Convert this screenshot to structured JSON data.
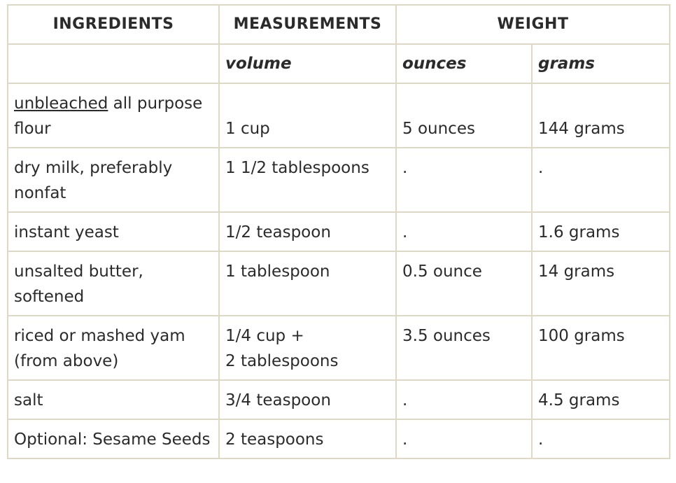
{
  "headers": {
    "ingredients": "INGREDIENTS",
    "measurements": "MEASUREMENTS",
    "weight": "WEIGHT"
  },
  "units": {
    "volume": "volume",
    "ounces": "ounces",
    "grams": "grams"
  },
  "rows": [
    {
      "ingredient_underlined": "unbleached",
      "ingredient_rest": " all purpose flour",
      "volume": "1 cup",
      "ounces": "5 ounces",
      "grams": "144 grams"
    },
    {
      "ingredient": "dry milk, preferably nonfat",
      "volume": "1 1/2 tablespoons",
      "ounces": ".",
      "grams": "."
    },
    {
      "ingredient": "instant yeast",
      "volume": "1/2 teaspoon",
      "ounces": ".",
      "grams": "1.6 grams"
    },
    {
      "ingredient": "unsalted butter, softened",
      "volume": "1 tablespoon",
      "ounces": "0.5 ounce",
      "grams": "14 grams"
    },
    {
      "ingredient": "riced or mashed yam (from above)",
      "volume_line1": "1/4 cup +",
      "volume_line2": "2 tablespoons",
      "ounces": "3.5 ounces",
      "grams": "100 grams"
    },
    {
      "ingredient": "salt",
      "volume": "3/4 teaspoon",
      "ounces": ".",
      "grams": "4.5 grams"
    },
    {
      "ingredient": "Optional: Sesame Seeds",
      "volume": "2 teaspoons",
      "ounces": ".",
      "grams": "."
    }
  ]
}
